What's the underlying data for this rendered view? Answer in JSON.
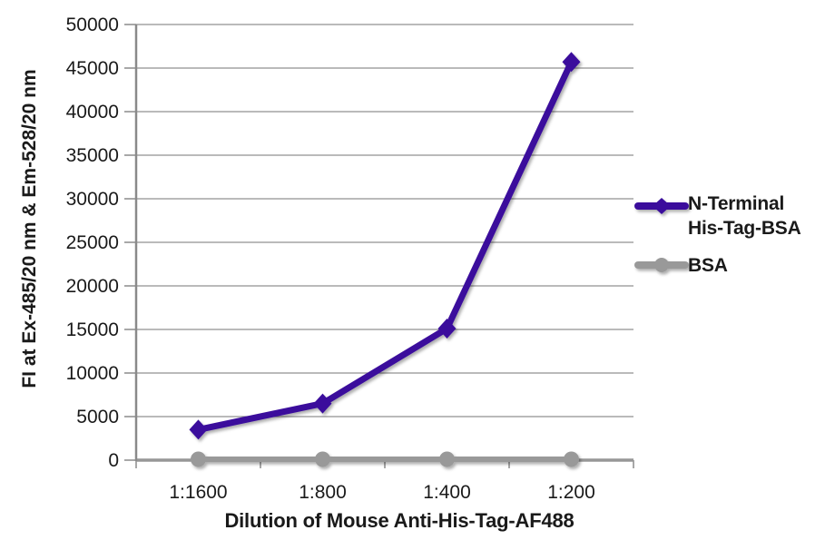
{
  "chart_data": {
    "type": "line",
    "title": "",
    "xlabel": "Dilution of Mouse Anti-His-Tag-AF488",
    "ylabel": "FI at Ex-485/20 nm & Em-528/20 nm",
    "categories": [
      "1:1600",
      "1:800",
      "1:400",
      "1:200"
    ],
    "series": [
      {
        "name": "N-Terminal His-Tag-BSA",
        "marker": "diamond",
        "color": "#3A0E9C",
        "values": [
          3500,
          6500,
          15100,
          45700
        ]
      },
      {
        "name": "BSA",
        "marker": "circle",
        "color": "#999999",
        "values": [
          100,
          100,
          100,
          100
        ]
      }
    ],
    "ylim": [
      0,
      50000
    ],
    "ytick_step": 5000,
    "ytick_labels": [
      "0",
      "5000",
      "10000",
      "15000",
      "20000",
      "25000",
      "30000",
      "35000",
      "40000",
      "45000",
      "50000"
    ],
    "grid": true,
    "legend_position": "right",
    "grid_color": "#909090",
    "axis_color": "#8A8A8A",
    "baseline_color": "#979797",
    "text_color": "#1A1A1A"
  }
}
